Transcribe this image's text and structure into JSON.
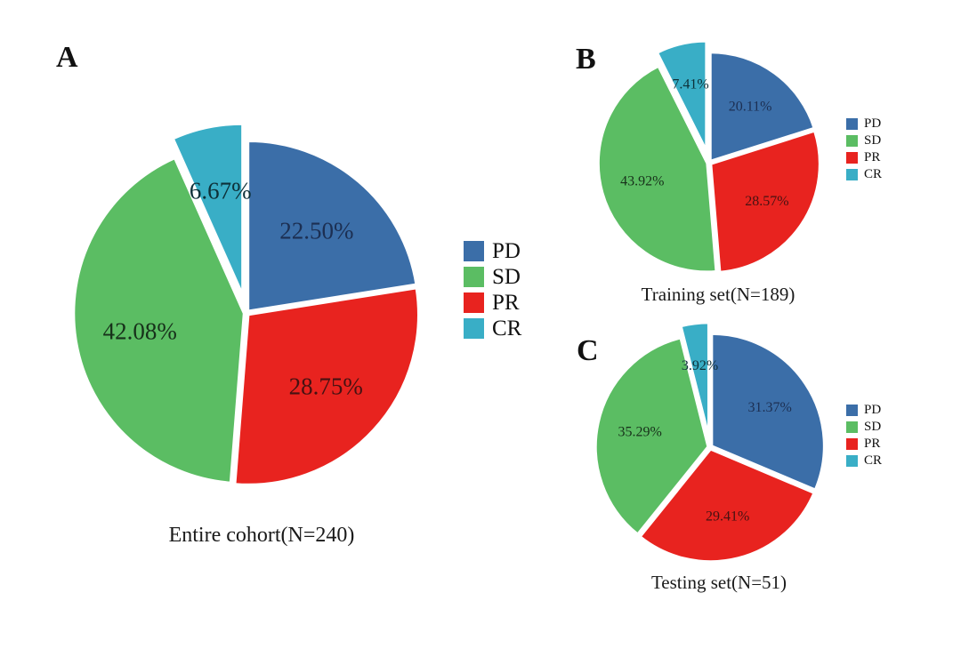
{
  "figure": {
    "background": "#ffffff",
    "series_colors": {
      "PD": "#3B6EA8",
      "SD": "#5BBD63",
      "PR": "#E8231F",
      "CR": "#39AEC6"
    },
    "label_text_colors": {
      "PD": "#1c2f52",
      "SD": "#17301a",
      "PR": "#451212",
      "CR": "#0d3038"
    }
  },
  "chart_data": [
    {
      "panel_label": "A",
      "type": "pie",
      "title": "Entire cohort(N=240)",
      "n": 240,
      "categories": [
        "PD",
        "SD",
        "PR",
        "CR"
      ],
      "values": [
        22.5,
        42.08,
        28.75,
        6.67
      ],
      "labels": [
        "22.50%",
        "42.08%",
        "28.75%",
        "6.67%"
      ],
      "draw_order_clockwise_from_top": [
        "PD",
        "PR",
        "SD",
        "CR"
      ],
      "exploded_slice": "CR",
      "legend_entries": [
        "PD",
        "SD",
        "PR",
        "CR"
      ],
      "legend_position": "right"
    },
    {
      "panel_label": "B",
      "type": "pie",
      "title": "Training set(N=189)",
      "n": 189,
      "categories": [
        "PD",
        "SD",
        "PR",
        "CR"
      ],
      "values": [
        20.11,
        43.92,
        28.57,
        7.41
      ],
      "labels": [
        "20.11%",
        "43.92%",
        "28.57%",
        "7.41%"
      ],
      "draw_order_clockwise_from_top": [
        "PD",
        "PR",
        "SD",
        "CR"
      ],
      "exploded_slice": "CR",
      "legend_entries": [
        "PD",
        "SD",
        "PR",
        "CR"
      ],
      "legend_position": "right"
    },
    {
      "panel_label": "C",
      "type": "pie",
      "title": "Testing set(N=51)",
      "n": 51,
      "categories": [
        "PD",
        "SD",
        "PR",
        "CR"
      ],
      "values": [
        31.37,
        35.29,
        29.41,
        3.92
      ],
      "labels": [
        "31.37%",
        "35.29%",
        "29.41%",
        "3.92%"
      ],
      "draw_order_clockwise_from_top": [
        "PD",
        "PR",
        "SD",
        "CR"
      ],
      "exploded_slice": "CR",
      "legend_entries": [
        "PD",
        "SD",
        "PR",
        "CR"
      ],
      "legend_position": "right"
    }
  ]
}
